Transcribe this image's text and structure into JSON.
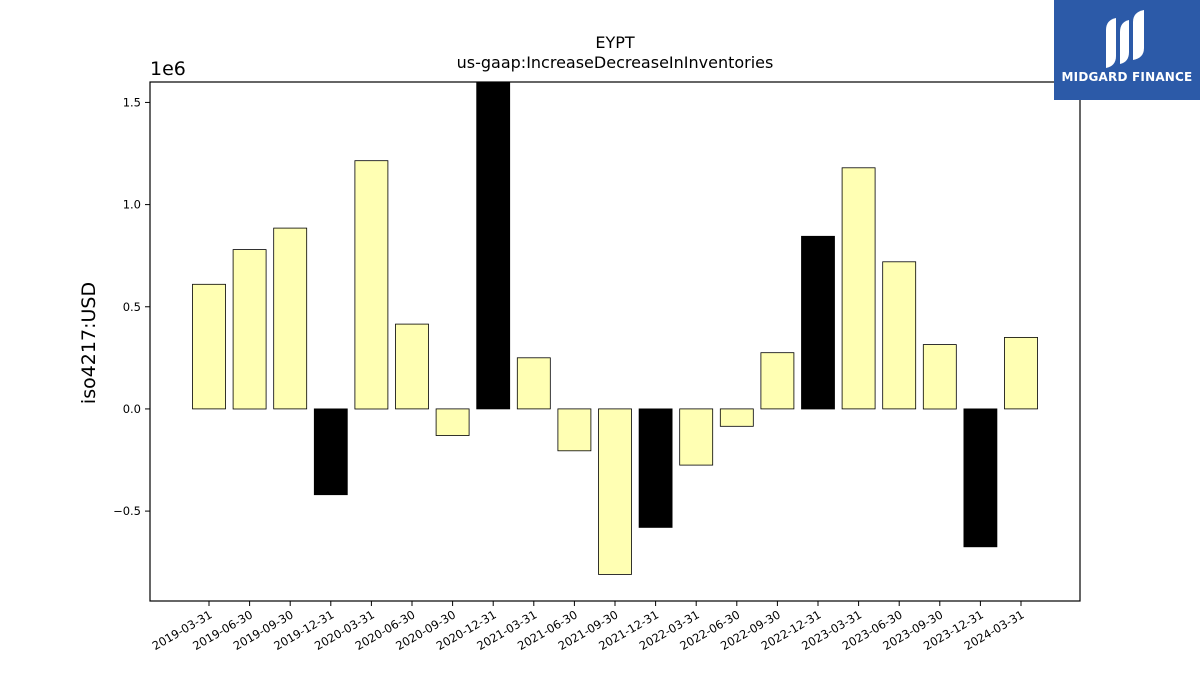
{
  "chart_data": {
    "type": "bar",
    "title": "EYPT",
    "subtitle": "us-gaap:IncreaseDecreaseInInventories",
    "ylabel": "iso4217:USD",
    "xlabel": "",
    "y_scale_label": "1e6",
    "ylim": [
      -0.94,
      1.6
    ],
    "y_ticks": [
      -0.5,
      0.0,
      0.5,
      1.0,
      1.5
    ],
    "y_tick_labels": [
      "−0.5",
      "0.0",
      "0.5",
      "1.0",
      "1.5"
    ],
    "grid": false,
    "colors": {
      "default": "#ffffb3",
      "highlight": "#000000",
      "edge": "#000000"
    },
    "categories": [
      "2019-03-31",
      "2019-06-30",
      "2019-09-30",
      "2019-12-31",
      "2020-03-31",
      "2020-06-30",
      "2020-09-30",
      "2020-12-31",
      "2021-03-31",
      "2021-06-30",
      "2021-09-30",
      "2021-12-31",
      "2022-03-31",
      "2022-06-30",
      "2022-09-30",
      "2022-12-31",
      "2023-03-31",
      "2023-06-30",
      "2023-09-30",
      "2023-12-31",
      "2024-03-31"
    ],
    "values": [
      0.61,
      0.78,
      0.885,
      -0.42,
      1.215,
      0.415,
      -0.13,
      1.6,
      0.25,
      -0.205,
      -0.81,
      -0.58,
      -0.275,
      -0.085,
      0.275,
      0.845,
      1.18,
      0.72,
      0.315,
      -0.675,
      0.35
    ],
    "highlight": [
      false,
      false,
      false,
      true,
      false,
      false,
      false,
      true,
      false,
      false,
      false,
      true,
      false,
      false,
      false,
      true,
      false,
      false,
      false,
      true,
      false
    ]
  },
  "logo": {
    "text": "MIDGARD FINANCE"
  }
}
